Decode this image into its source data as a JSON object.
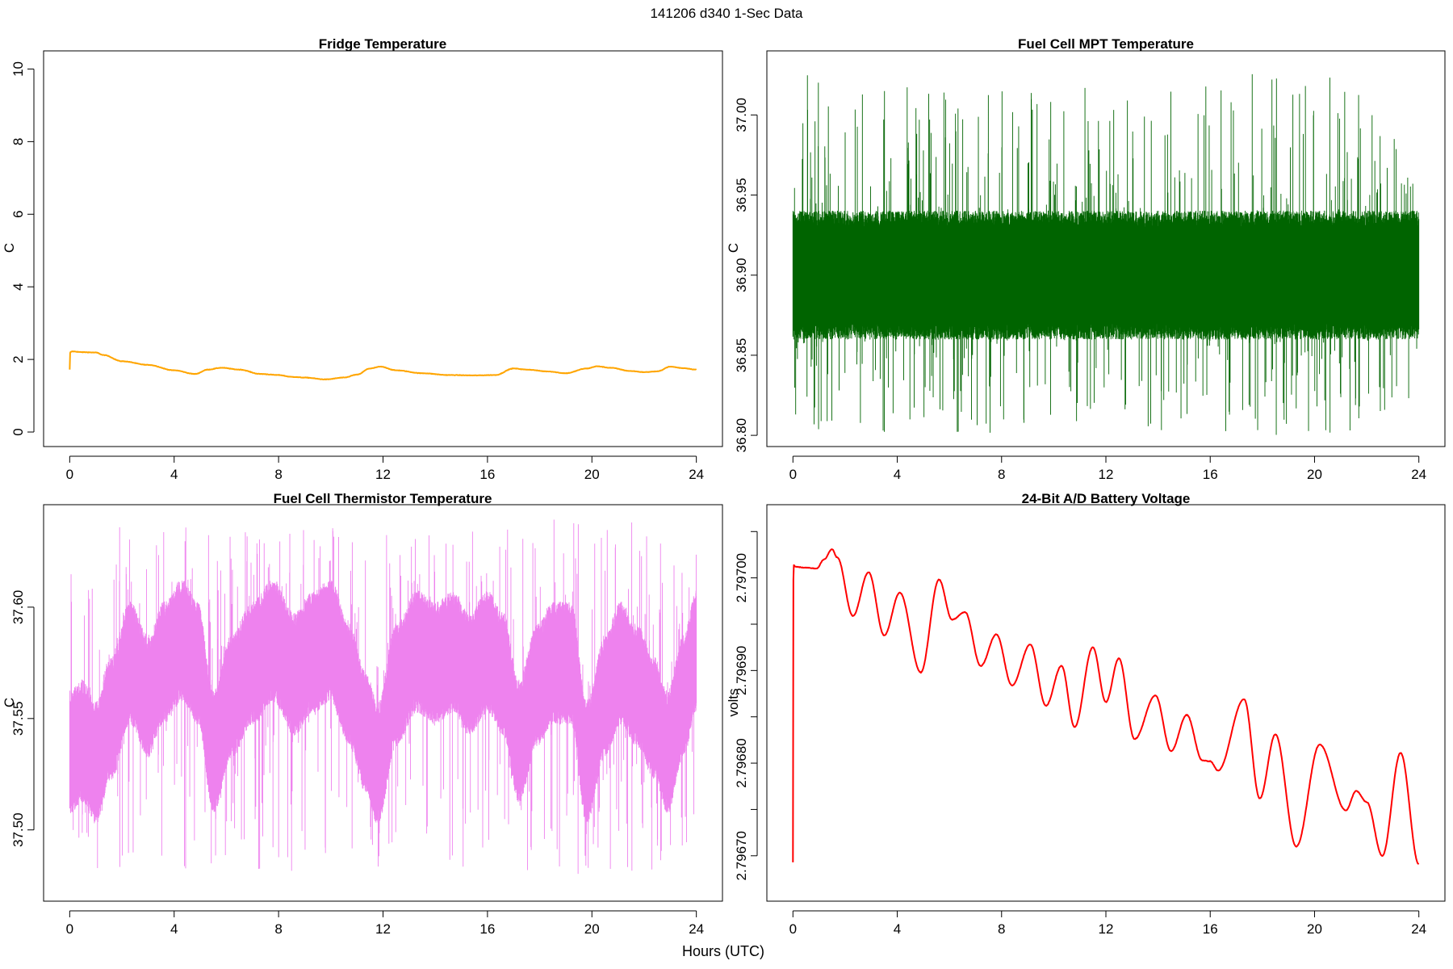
{
  "figure": {
    "title": "141206   d340   1-Sec Data",
    "xlabel": "Hours (UTC)"
  },
  "chart_data": [
    {
      "id": "fridge",
      "type": "line",
      "title": "Fridge Temperature",
      "ylabel": "C",
      "xlabel": "",
      "xlim": [
        -1,
        25
      ],
      "ylim": [
        -0.4,
        10.5
      ],
      "xticks": [
        0,
        4,
        8,
        12,
        16,
        20,
        24
      ],
      "yticks": [
        0,
        2,
        4,
        6,
        8,
        10
      ],
      "ytick_labels": [
        "0",
        "2",
        "4",
        "6",
        "8",
        "10"
      ],
      "color": "#ffa500",
      "noise": 0.012,
      "series": [
        {
          "x": [
            0,
            0.02,
            0.1,
            0.5,
            1.0,
            1.3,
            2.0,
            3.0,
            4.0,
            4.8,
            5.3,
            5.8,
            6.5,
            7.3,
            8.0,
            8.5,
            9.0,
            9.8,
            10.5,
            11.0,
            11.5,
            11.9,
            12.5,
            13.5,
            14.5,
            15.5,
            16.3,
            17.0,
            17.5,
            18.3,
            19.0,
            19.8,
            20.2,
            20.7,
            21.5,
            22.0,
            22.5,
            23.0,
            23.5,
            24.0
          ],
          "y": [
            1.72,
            2.2,
            2.22,
            2.2,
            2.19,
            2.12,
            1.95,
            1.85,
            1.7,
            1.6,
            1.72,
            1.77,
            1.72,
            1.6,
            1.57,
            1.52,
            1.5,
            1.45,
            1.5,
            1.58,
            1.75,
            1.8,
            1.7,
            1.62,
            1.57,
            1.56,
            1.57,
            1.75,
            1.72,
            1.67,
            1.62,
            1.75,
            1.81,
            1.77,
            1.68,
            1.65,
            1.67,
            1.8,
            1.76,
            1.72
          ]
        }
      ]
    },
    {
      "id": "mpt",
      "type": "line",
      "title": "Fuel Cell MPT Temperature",
      "ylabel": "C",
      "xlabel": "",
      "xlim": [
        -1,
        25
      ],
      "ylim": [
        36.793,
        37.04
      ],
      "xticks": [
        0,
        4,
        8,
        12,
        16,
        20,
        24
      ],
      "yticks": [
        36.8,
        36.85,
        36.9,
        36.95,
        37.0
      ],
      "ytick_labels": [
        "36.80",
        "36.85",
        "36.90",
        "36.95",
        "37.00"
      ],
      "color": "#006400",
      "mean": 36.9,
      "band": [
        36.87,
        36.94
      ],
      "spike_range": [
        36.8,
        37.027
      ],
      "dense": true
    },
    {
      "id": "thermistor",
      "type": "line",
      "title": "Fuel Cell Thermistor Temperature",
      "ylabel": "C",
      "xlabel": "",
      "xlim": [
        -1,
        25
      ],
      "ylim": [
        37.468,
        37.646
      ],
      "xticks": [
        0,
        4,
        8,
        12,
        16,
        20,
        24
      ],
      "yticks": [
        37.5,
        37.55,
        37.6
      ],
      "ytick_labels": [
        "37.50",
        "37.55",
        "37.60"
      ],
      "color": "#ee82ee",
      "envelope": {
        "x": [
          0,
          0.5,
          1.0,
          1.6,
          2.3,
          3.0,
          3.6,
          4.3,
          4.9,
          5.5,
          6.2,
          7.0,
          7.8,
          8.6,
          9.3,
          10.0,
          10.7,
          11.3,
          11.8,
          12.5,
          13.3,
          14.0,
          14.7,
          15.3,
          16.0,
          16.6,
          17.2,
          17.9,
          18.5,
          19.2,
          19.8,
          20.5,
          21.1,
          21.7,
          22.4,
          22.9,
          23.5,
          24.0
        ],
        "y": [
          37.535,
          37.54,
          37.53,
          37.55,
          37.575,
          37.56,
          37.575,
          37.585,
          37.575,
          37.535,
          37.56,
          37.575,
          37.585,
          37.57,
          37.58,
          37.585,
          37.565,
          37.545,
          37.53,
          37.565,
          37.58,
          37.575,
          37.58,
          37.57,
          37.58,
          37.57,
          37.54,
          37.565,
          37.575,
          37.575,
          37.53,
          37.56,
          37.575,
          37.565,
          37.55,
          37.535,
          37.56,
          37.58
        ]
      },
      "half_width": 0.024,
      "spike_range": [
        37.48,
        37.64
      ],
      "dense": true
    },
    {
      "id": "battery",
      "type": "line",
      "title": "24-Bit A/D Battery Voltage",
      "ylabel": "volts",
      "xlabel": "",
      "xlim": [
        -1,
        25
      ],
      "ylim": [
        2.796651,
        2.797079
      ],
      "xticks": [
        0,
        4,
        8,
        12,
        16,
        20,
        24
      ],
      "yticks": [
        2.7967,
        2.79675,
        2.7968,
        2.79685,
        2.7969,
        2.79695,
        2.797,
        2.79705
      ],
      "ytick_labels": [
        "2.79670",
        "",
        "2.79680",
        "",
        "2.79690",
        "",
        "2.79700",
        ""
      ],
      "color": "#ff0000",
      "noise": 6e-07,
      "series": [
        {
          "x": [
            0,
            0.02,
            0.1,
            0.5,
            0.9,
            1.2,
            1.5,
            1.7,
            2.3,
            2.9,
            3.5,
            4.1,
            4.9,
            5.6,
            6.1,
            6.6,
            7.2,
            7.8,
            8.4,
            9.1,
            9.7,
            10.3,
            10.8,
            11.5,
            12.0,
            12.5,
            13.1,
            13.9,
            14.5,
            15.1,
            15.7,
            16.0,
            16.3,
            17.3,
            17.9,
            18.5,
            19.3,
            20.2,
            21.2,
            21.6,
            22.0,
            22.6,
            23.3,
            24.0
          ],
          "y": [
            2.796693,
            2.797014,
            2.797012,
            2.797011,
            2.79701,
            2.79702,
            2.797031,
            2.797022,
            2.796959,
            2.797006,
            2.796938,
            2.796984,
            2.796898,
            2.796998,
            2.796955,
            2.796963,
            2.796905,
            2.796939,
            2.796884,
            2.796928,
            2.796862,
            2.796905,
            2.796839,
            2.796925,
            2.796866,
            2.796913,
            2.796826,
            2.796873,
            2.796813,
            2.796852,
            2.796803,
            2.796802,
            2.796792,
            2.796869,
            2.796762,
            2.796831,
            2.79671,
            2.79682,
            2.796749,
            2.79677,
            2.796758,
            2.7967,
            2.796811,
            2.796691
          ]
        }
      ]
    }
  ]
}
